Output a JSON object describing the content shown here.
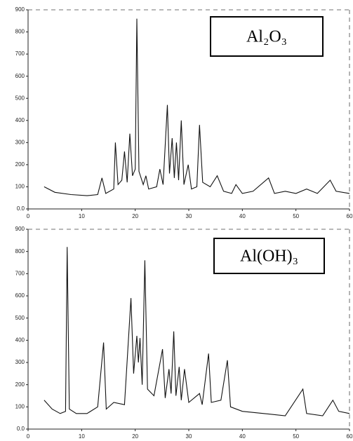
{
  "chart_data": [
    {
      "type": "line",
      "title": "Al₂O₃",
      "color": "#111111",
      "x": [
        3,
        5,
        8,
        11,
        13,
        13.8,
        14.5,
        16,
        16.3,
        16.8,
        17.5,
        18,
        18.5,
        19,
        19.5,
        20,
        20.3,
        20.7,
        21.5,
        22,
        22.5,
        24,
        24.6,
        25.2,
        26,
        26.4,
        26.9,
        27.3,
        27.7,
        28.1,
        28.6,
        29.1,
        29.9,
        30.5,
        31.5,
        32,
        32.6,
        34,
        35.3,
        36.5,
        38,
        38.8,
        40,
        42,
        44.9,
        46,
        48,
        50,
        52,
        54,
        56.4,
        57.5,
        60
      ],
      "values": [
        100,
        75,
        65,
        60,
        65,
        140,
        70,
        90,
        300,
        110,
        130,
        260,
        120,
        340,
        150,
        180,
        860,
        170,
        110,
        150,
        90,
        100,
        180,
        110,
        470,
        160,
        320,
        140,
        300,
        130,
        400,
        110,
        200,
        90,
        100,
        380,
        120,
        100,
        150,
        80,
        70,
        110,
        70,
        80,
        140,
        70,
        80,
        70,
        90,
        70,
        130,
        80,
        70
      ],
      "xlim": [
        0,
        60
      ],
      "xticks": [
        0,
        10,
        20,
        30,
        40,
        50,
        60
      ],
      "ylim": [
        0,
        900
      ],
      "yticks": [
        {
          "value": 0,
          "label": "0.0"
        },
        100,
        200,
        300,
        400,
        500,
        600,
        700,
        800,
        900
      ]
    },
    {
      "type": "line",
      "title": "Al(OH)₃",
      "color": "#111111",
      "x": [
        3,
        4.5,
        6,
        7,
        7.3,
        7.7,
        9,
        11,
        13,
        14.1,
        14.6,
        16,
        18,
        19.2,
        19.7,
        20.3,
        20.6,
        20.9,
        21.3,
        21.8,
        22.3,
        23.5,
        25.1,
        25.6,
        26.3,
        26.7,
        27.2,
        27.6,
        28.2,
        28.6,
        29.2,
        30,
        32,
        32.5,
        33.7,
        34.2,
        36,
        37.2,
        37.8,
        40,
        44,
        48,
        51.3,
        52,
        55,
        56.9,
        58,
        60
      ],
      "values": [
        130,
        90,
        70,
        80,
        820,
        90,
        70,
        70,
        100,
        390,
        90,
        120,
        110,
        590,
        250,
        420,
        300,
        410,
        200,
        760,
        180,
        150,
        360,
        140,
        270,
        160,
        440,
        150,
        280,
        130,
        270,
        120,
        160,
        110,
        340,
        120,
        130,
        310,
        100,
        80,
        70,
        60,
        180,
        70,
        60,
        130,
        80,
        70
      ],
      "xlim": [
        0,
        60
      ],
      "xticks": [
        0,
        10,
        20,
        30,
        40,
        50,
        60
      ],
      "ylim": [
        0,
        900
      ],
      "yticks": [
        {
          "value": 0,
          "label": "0.0"
        },
        100,
        200,
        300,
        400,
        500,
        600,
        700,
        800,
        900
      ]
    }
  ]
}
